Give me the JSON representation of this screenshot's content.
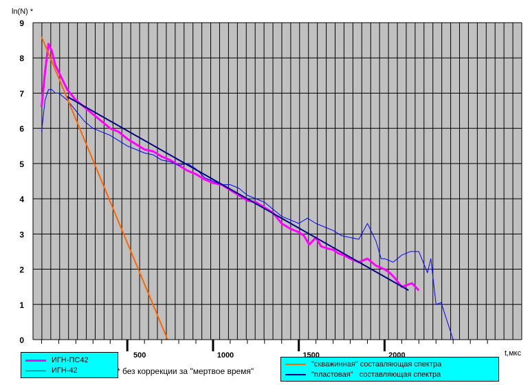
{
  "chart_data": {
    "type": "line",
    "ylabel": "ln(N) *",
    "xlabel": "t,мкс",
    "xlim": [
      -50,
      2800
    ],
    "ylim": [
      0,
      9
    ],
    "x_ticks": [
      500,
      1000,
      1500,
      2000
    ],
    "y_ticks": [
      0,
      1,
      2,
      3,
      4,
      5,
      6,
      7,
      8,
      9
    ],
    "grid": true,
    "background": "#c0c0c0",
    "series": [
      {
        "name": "ИГН-ПС42",
        "color": "#ff00ff",
        "x": [
          0,
          20,
          40,
          60,
          80,
          100,
          150,
          200,
          250,
          300,
          350,
          400,
          450,
          500,
          550,
          600,
          650,
          700,
          750,
          800,
          850,
          900,
          950,
          1000,
          1050,
          1100,
          1150,
          1200,
          1250,
          1300,
          1350,
          1400,
          1450,
          1500,
          1530,
          1560,
          1600,
          1630,
          1660,
          1700,
          1730,
          1760,
          1800,
          1850,
          1900,
          1950,
          2000,
          2030,
          2060,
          2100,
          2130,
          2160,
          2200
        ],
        "y": [
          6.6,
          7.6,
          8.4,
          8.2,
          7.8,
          7.6,
          7.1,
          6.8,
          6.6,
          6.4,
          6.2,
          6.0,
          5.9,
          5.7,
          5.55,
          5.4,
          5.35,
          5.2,
          5.1,
          4.95,
          4.8,
          4.7,
          4.55,
          4.45,
          4.4,
          4.25,
          4.1,
          3.95,
          3.9,
          3.75,
          3.6,
          3.3,
          3.15,
          3.05,
          2.95,
          2.7,
          2.9,
          2.65,
          2.6,
          2.55,
          2.45,
          2.4,
          2.3,
          2.2,
          2.3,
          2.1,
          2.0,
          1.9,
          1.75,
          1.5,
          1.55,
          1.6,
          1.4
        ]
      },
      {
        "name": "ИГН-42",
        "color": "#0000ff",
        "x": [
          0,
          20,
          40,
          60,
          80,
          100,
          150,
          200,
          250,
          300,
          350,
          400,
          450,
          500,
          550,
          600,
          650,
          700,
          750,
          800,
          850,
          900,
          950,
          1000,
          1050,
          1100,
          1150,
          1200,
          1250,
          1300,
          1350,
          1400,
          1450,
          1500,
          1550,
          1600,
          1650,
          1700,
          1750,
          1800,
          1850,
          1900,
          1950,
          1980,
          2000,
          2050,
          2100,
          2150,
          2200,
          2250,
          2270,
          2300,
          2330,
          2360,
          2400
        ],
        "y": [
          5.9,
          6.8,
          7.1,
          7.1,
          7.0,
          7.0,
          6.8,
          6.5,
          6.2,
          6.0,
          5.9,
          5.8,
          5.65,
          5.5,
          5.4,
          5.3,
          5.25,
          5.1,
          5.05,
          4.95,
          5.0,
          4.85,
          4.6,
          4.5,
          4.4,
          4.4,
          4.3,
          4.1,
          4.0,
          3.9,
          3.7,
          3.5,
          3.4,
          3.3,
          3.45,
          3.3,
          3.2,
          3.1,
          2.95,
          2.9,
          2.85,
          3.3,
          2.8,
          2.3,
          2.3,
          2.2,
          2.4,
          2.5,
          2.5,
          1.9,
          2.3,
          1.0,
          1.05,
          0.6,
          0.0
        ]
      },
      {
        "name": "\"скважинная\" составляющая спектра",
        "color": "#ff6600",
        "x": [
          0,
          735
        ],
        "y": [
          8.6,
          0.0
        ]
      },
      {
        "name": "\"пластовая\"   составляющая спектра",
        "color": "#000080",
        "x": [
          150,
          2140
        ],
        "y": [
          6.9,
          1.4
        ]
      }
    ]
  },
  "footnote": "* без коррекции за \"мертвое время\"",
  "legend_left": {
    "items": [
      {
        "label": "ИГН-ПС42",
        "color": "#ff00ff"
      },
      {
        "label": "ИГН-42",
        "color": "#0000ff"
      }
    ]
  },
  "legend_right": {
    "items": [
      {
        "label": "\"скважинная\" составляющая спектра",
        "color": "#ff6600"
      },
      {
        "label": "\"пластовая\"   составляющая спектра",
        "color": "#000080"
      }
    ]
  }
}
